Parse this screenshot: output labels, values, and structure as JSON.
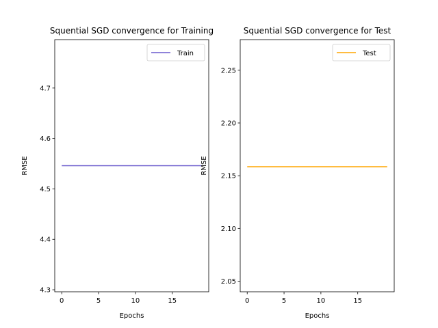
{
  "chart_data": [
    {
      "type": "line",
      "title": "Squential SGD convergence for Training",
      "xlabel": "Epochs",
      "ylabel": "RMSE",
      "x": [
        0,
        1,
        2,
        3,
        4,
        5,
        6,
        7,
        8,
        9,
        10,
        11,
        12,
        13,
        14,
        15,
        16,
        17,
        18,
        19
      ],
      "series": [
        {
          "name": "Train",
          "color": "#6a5acd",
          "values": [
            4.546,
            4.546,
            4.546,
            4.546,
            4.546,
            4.546,
            4.546,
            4.546,
            4.546,
            4.546,
            4.546,
            4.546,
            4.546,
            4.546,
            4.546,
            4.546,
            4.546,
            4.546,
            4.546,
            4.546
          ]
        }
      ],
      "xlim": [
        -0.95,
        19.95
      ],
      "ylim": [
        4.296,
        4.796
      ],
      "xticks": [
        0,
        5,
        10,
        15
      ],
      "xtick_labels": [
        "0",
        "5",
        "10",
        "15"
      ],
      "yticks": [
        4.3,
        4.4,
        4.5,
        4.6,
        4.7
      ],
      "ytick_labels": [
        "4.3",
        "4.4",
        "4.5",
        "4.6",
        "4.7"
      ],
      "legend": "top-right",
      "grid": false
    },
    {
      "type": "line",
      "title": "Squential SGD convergence for Test",
      "xlabel": "Epochs",
      "ylabel": "RMSE",
      "x": [
        0,
        1,
        2,
        3,
        4,
        5,
        6,
        7,
        8,
        9,
        10,
        11,
        12,
        13,
        14,
        15,
        16,
        17,
        18,
        19
      ],
      "series": [
        {
          "name": "Test",
          "color": "#ffa500",
          "values": [
            2.1585,
            2.1585,
            2.1585,
            2.1585,
            2.1585,
            2.1585,
            2.1585,
            2.1585,
            2.1585,
            2.1585,
            2.1585,
            2.1585,
            2.1585,
            2.1585,
            2.1585,
            2.1585,
            2.1585,
            2.1585,
            2.1585,
            2.1585
          ]
        }
      ],
      "xlim": [
        -0.95,
        19.95
      ],
      "ylim": [
        2.04,
        2.279
      ],
      "xticks": [
        0,
        5,
        10,
        15
      ],
      "xtick_labels": [
        "0",
        "5",
        "10",
        "15"
      ],
      "yticks": [
        2.05,
        2.1,
        2.15,
        2.2,
        2.25
      ],
      "ytick_labels": [
        "2.05",
        "2.10",
        "2.15",
        "2.20",
        "2.25"
      ],
      "legend": "top-right",
      "grid": false
    }
  ]
}
